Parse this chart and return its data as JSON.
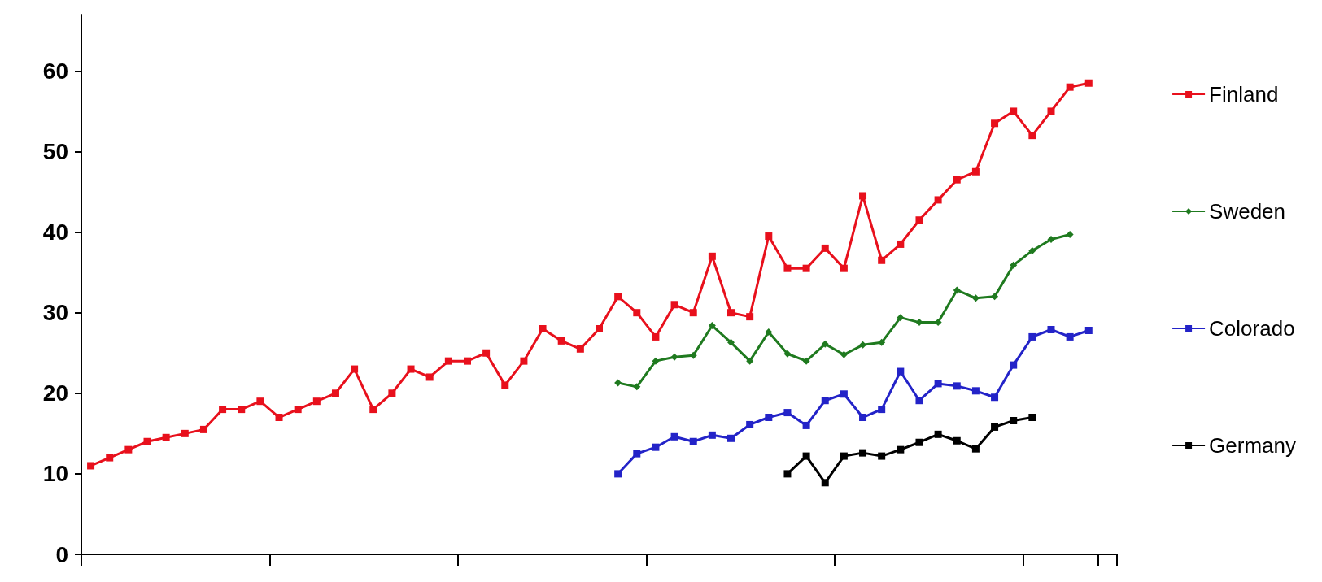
{
  "chart_data": {
    "type": "line",
    "categories": [
      null,
      null,
      null,
      null,
      null,
      null,
      null,
      null,
      null,
      null,
      null,
      null,
      null,
      null,
      null,
      null,
      null,
      null,
      null,
      null,
      null,
      null,
      null,
      null,
      null,
      null,
      null,
      null,
      null,
      null,
      null,
      null,
      null,
      null,
      null,
      null,
      null,
      null,
      null,
      null,
      null,
      null,
      null,
      null,
      null,
      null,
      null,
      null,
      null,
      null,
      null,
      null,
      null,
      null,
      null
    ],
    "series": [
      {
        "name": "Finland",
        "color": "#e8101c",
        "values": [
          11,
          12,
          13,
          14,
          14.5,
          15,
          15.5,
          18,
          18,
          19,
          17,
          18,
          19,
          20,
          23,
          18,
          20,
          23,
          22,
          24,
          24,
          25,
          21,
          24,
          28,
          26.5,
          25.5,
          28,
          32,
          30,
          27,
          31,
          30,
          37,
          30,
          29.5,
          39.5,
          35.5,
          35.5,
          38,
          35.5,
          44.5,
          36.5,
          38.5,
          41.5,
          44,
          46.5,
          47.5,
          53.5,
          55,
          52,
          55,
          58,
          58.5,
          null
        ]
      },
      {
        "name": "Sweden",
        "color": "#1f7a1f",
        "marker": "diamond",
        "values": [
          null,
          null,
          null,
          null,
          null,
          null,
          null,
          null,
          null,
          null,
          null,
          null,
          null,
          null,
          null,
          null,
          null,
          null,
          null,
          null,
          null,
          null,
          null,
          null,
          null,
          null,
          null,
          null,
          21.3,
          20.8,
          24,
          24.5,
          24.7,
          28.4,
          26.3,
          24,
          27.6,
          24.9,
          24,
          26.1,
          24.8,
          26,
          26.3,
          29.4,
          28.8,
          28.8,
          32.8,
          31.8,
          32,
          35.9,
          37.7,
          39.1,
          39.7,
          null,
          null
        ]
      },
      {
        "name": "Colorado",
        "color": "#2323c8",
        "values": [
          null,
          null,
          null,
          null,
          null,
          null,
          null,
          null,
          null,
          null,
          null,
          null,
          null,
          null,
          null,
          null,
          null,
          null,
          null,
          null,
          null,
          null,
          null,
          null,
          null,
          null,
          null,
          null,
          10,
          12.5,
          13.3,
          14.6,
          14,
          14.8,
          14.4,
          16.1,
          17,
          17.6,
          16,
          19.1,
          19.9,
          17,
          18,
          22.7,
          19.1,
          21.2,
          20.9,
          20.3,
          19.5,
          23.5,
          27,
          27.9,
          27,
          27.8,
          null
        ]
      },
      {
        "name": "Germany",
        "color": "#000000",
        "values": [
          null,
          null,
          null,
          null,
          null,
          null,
          null,
          null,
          null,
          null,
          null,
          null,
          null,
          null,
          null,
          null,
          null,
          null,
          null,
          null,
          null,
          null,
          null,
          null,
          null,
          null,
          null,
          null,
          null,
          null,
          null,
          null,
          null,
          null,
          null,
          null,
          null,
          10,
          12.2,
          8.9,
          12.2,
          12.6,
          12.2,
          13,
          13.9,
          14.9,
          14.1,
          13.1,
          15.8,
          16.6,
          17,
          null,
          null,
          null,
          null
        ]
      }
    ],
    "ylim": [
      0,
      67
    ],
    "yticks": [
      0,
      10,
      20,
      30,
      40,
      50,
      60
    ],
    "grid": false,
    "legend": "right",
    "marker": "square",
    "line_style": "solid",
    "tick_labels": "y"
  }
}
